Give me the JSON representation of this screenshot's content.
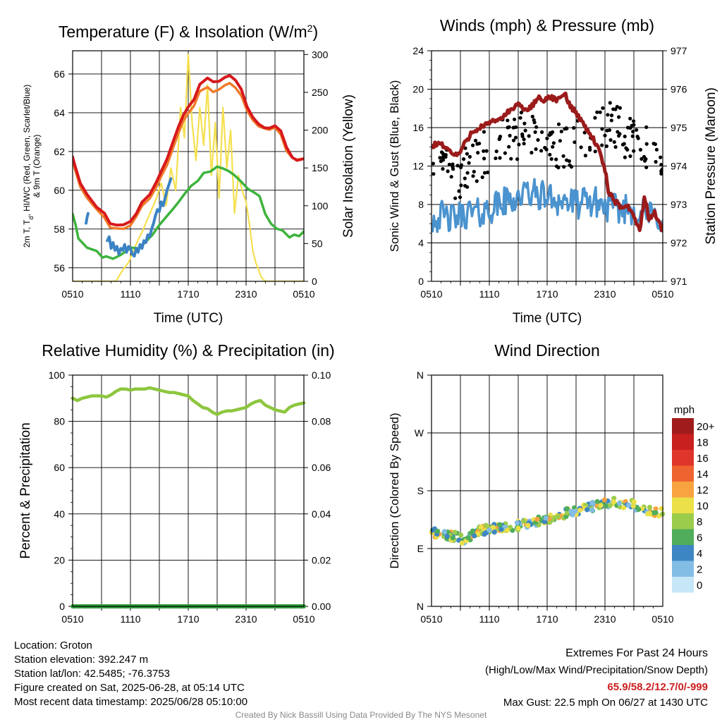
{
  "colors": {
    "red": "#d7191c",
    "orange": "#f07b2a",
    "green": "#3db33d",
    "blue": "#3b83c4",
    "yellow": "#f5e050",
    "maroon": "#9b1b1b",
    "sonic_blue": "#4a93cf",
    "rh_green": "#8dc63f",
    "precip_green": "#2f9e3a",
    "extremes_red": "#cc1f1f",
    "credit_gray": "#888888"
  },
  "chart_data": [
    {
      "id": "temperature",
      "type": "line",
      "title": "Temperature (F) & Insolation (W/m²)",
      "title_parts": [
        "Temperature (F) & Insolation (W/m",
        "2",
        ")"
      ],
      "xlabel": "Time (UTC)",
      "ylabel_lines": [
        "2m T, T",
        "d",
        ", HI/WC (Red, Green, Scarlet/Blue)",
        "& 9m T (Orange)"
      ],
      "y2label": "Solar Insolation (Yellow)",
      "x_ticks": [
        "0510",
        "1110",
        "1710",
        "2310",
        "0510"
      ],
      "x_hours": [
        0,
        24
      ],
      "ylim": [
        55.3,
        67.2
      ],
      "y_ticks": [
        56,
        58,
        60,
        62,
        64,
        66
      ],
      "y2lim": [
        0,
        305
      ],
      "y2_ticks": [
        0,
        50,
        100,
        150,
        200,
        250,
        300
      ],
      "grid": true,
      "series": [
        {
          "color": "yellow",
          "axis": "right",
          "x": [
            0,
            4.5,
            5.2,
            5.8,
            6.3,
            6.8,
            7.2,
            7.7,
            8.2,
            8.7,
            9.2,
            9.7,
            10.2,
            10.7,
            11.2,
            11.6,
            12,
            12.4,
            12.8,
            13.2,
            13.6,
            14,
            14.4,
            14.8,
            15.2,
            15.6,
            16,
            16.4,
            16.8,
            17.2,
            17.6,
            18,
            18.4,
            18.7,
            19,
            19.3,
            19.6,
            20,
            24
          ],
          "y": [
            0,
            0,
            15,
            25,
            40,
            55,
            65,
            80,
            95,
            110,
            130,
            100,
            150,
            120,
            230,
            190,
            300,
            210,
            160,
            230,
            180,
            260,
            140,
            210,
            110,
            230,
            150,
            200,
            90,
            140,
            120,
            105,
            70,
            40,
            25,
            15,
            5,
            0,
            0
          ]
        },
        {
          "color": "green",
          "axis": "left",
          "x": [
            0,
            0.3,
            0.6,
            1.5,
            2.5,
            3.1,
            3.5,
            4.2,
            5,
            5.5,
            6.1,
            6.8,
            7.5,
            8.3,
            9,
            9.7,
            10.4,
            11,
            11.6,
            12.3,
            13,
            13.6,
            14.3,
            15,
            15.6,
            16.2,
            16.8,
            17.5,
            18.2,
            18.8,
            19.4,
            20,
            20.6,
            21.2,
            21.8,
            22.5,
            23,
            23.5,
            24
          ],
          "y": [
            58.8,
            58.2,
            57.5,
            57.0,
            56.9,
            56.5,
            56.6,
            56.5,
            56.7,
            56.8,
            57.0,
            57.0,
            57.3,
            57.7,
            58.2,
            58.6,
            59.0,
            59.4,
            59.8,
            60.2,
            60.5,
            60.9,
            61.0,
            61.2,
            61.1,
            61.0,
            60.8,
            60.4,
            60.1,
            59.9,
            59.7,
            58.8,
            58.3,
            58.0,
            57.9,
            57.6,
            57.7,
            57.6,
            57.9
          ]
        },
        {
          "color": "orange",
          "axis": "left",
          "x": [
            0,
            0.3,
            0.8,
            1.5,
            2.5,
            3.3,
            3.9,
            4.6,
            5.3,
            6,
            6.6,
            7.2,
            8,
            8.7,
            9.2,
            9.8,
            10.5,
            11,
            11.5,
            12,
            12.6,
            13.2,
            14,
            14.6,
            15.2,
            15.8,
            16.3,
            16.9,
            17.5,
            18.1,
            18.7,
            19.3,
            19.9,
            20.4,
            21,
            21.6,
            22.2,
            22.8,
            23.3,
            24
          ],
          "y": [
            61.5,
            61.0,
            60.2,
            59.6,
            59.0,
            58.6,
            58.1,
            58.0,
            58.0,
            58.2,
            58.6,
            59.2,
            59.6,
            60.2,
            60.7,
            61.3,
            62.3,
            63.0,
            63.6,
            64.0,
            64.4,
            65.1,
            65.3,
            65.1,
            65.2,
            65.4,
            65.5,
            65.3,
            64.9,
            64.1,
            63.6,
            63.3,
            63.2,
            63.1,
            63.2,
            62.9,
            62.0,
            61.7,
            61.6,
            61.6
          ]
        },
        {
          "color": "red",
          "axis": "left",
          "x": [
            0,
            0.3,
            0.8,
            1.5,
            2.5,
            3.3,
            3.9,
            4.6,
            5.3,
            6,
            6.6,
            7.2,
            8,
            8.7,
            9.2,
            9.8,
            10.5,
            11,
            11.5,
            12,
            12.6,
            13.2,
            14,
            14.6,
            15.2,
            15.8,
            16.3,
            16.9,
            17.5,
            18.1,
            18.7,
            19.3,
            19.9,
            20.4,
            21,
            21.6,
            22.2,
            22.8,
            23.3,
            24
          ],
          "y": [
            61.7,
            61.2,
            60.4,
            59.8,
            59.1,
            58.8,
            58.3,
            58.2,
            58.2,
            58.4,
            58.8,
            59.4,
            59.8,
            60.4,
            61.0,
            61.6,
            62.6,
            63.3,
            63.9,
            64.3,
            64.7,
            65.5,
            65.8,
            65.6,
            65.6,
            65.8,
            65.9,
            65.7,
            65.2,
            64.3,
            63.8,
            63.4,
            63.2,
            63.2,
            63.3,
            63.1,
            62.2,
            61.7,
            61.5,
            61.6
          ]
        },
        {
          "color": "blue",
          "axis": "left",
          "x": [
            1.4,
            1.5,
            1.6
          ],
          "y": [
            58.3,
            58.6,
            58.8
          ]
        },
        {
          "color": "blue",
          "axis": "left",
          "x": [
            3.6,
            3.8,
            4,
            4.2,
            4.4,
            4.6,
            4.8,
            5,
            5.2,
            5.4,
            5.6,
            5.8,
            6,
            6.2,
            6.4,
            6.6,
            6.8,
            7,
            7.2,
            7.4,
            7.6,
            7.8,
            8,
            8.2,
            8.4,
            8.6,
            8.8,
            9,
            9.2,
            9.4,
            9.6,
            9.8,
            10,
            10.2
          ],
          "y": [
            57.4,
            57.6,
            57.0,
            57.3,
            56.9,
            57.1,
            56.7,
            57.0,
            56.9,
            57.2,
            56.8,
            57.1,
            57.0,
            56.7,
            56.6,
            57.0,
            56.8,
            57.2,
            57.0,
            57.4,
            57.3,
            57.7,
            57.6,
            58.0,
            58.3,
            58.7,
            59.0,
            58.9,
            59.4,
            59.2,
            59.6,
            60.0,
            60.3,
            60.6
          ]
        }
      ]
    },
    {
      "id": "winds",
      "type": "line",
      "title": "Winds (mph) & Pressure (mb)",
      "xlabel": "Time (UTC)",
      "ylabel": "Sonic Wind & Gust (Blue, Black)",
      "y2label": "Station Pressure (Maroon)",
      "x_ticks": [
        "0510",
        "1110",
        "1710",
        "2310",
        "0510"
      ],
      "x_hours": [
        0,
        24
      ],
      "ylim": [
        0,
        24
      ],
      "y_ticks": [
        0,
        4,
        8,
        12,
        16,
        20,
        24
      ],
      "y2lim": [
        971,
        977
      ],
      "y2_ticks": [
        971,
        972,
        973,
        974,
        975,
        976,
        977
      ],
      "grid": true,
      "series": [
        {
          "color": "sonic_blue",
          "axis": "left",
          "kind": "noisy-line",
          "x": [
            0,
            1,
            2,
            3,
            4,
            5,
            6,
            7,
            8,
            9,
            10,
            11,
            12,
            13,
            14,
            15,
            16,
            17,
            18,
            19,
            20,
            21,
            22,
            23,
            24
          ],
          "y": [
            6.5,
            6.8,
            6.5,
            6.8,
            7.2,
            7.0,
            7.5,
            8.0,
            8.4,
            8.8,
            9.2,
            9.0,
            8.8,
            8.5,
            8.3,
            8.0,
            8.2,
            8.3,
            7.8,
            7.5,
            7.6,
            7.4,
            7.0,
            6.8,
            6.5
          ],
          "amp": 1.6
        },
        {
          "color": "black",
          "axis": "left",
          "kind": "points",
          "x": [
            0,
            1,
            2,
            3,
            4,
            5,
            6,
            7,
            8,
            9,
            10,
            11,
            12,
            13,
            14,
            15,
            16,
            17,
            18,
            19,
            20,
            21,
            22,
            23,
            24
          ],
          "y": [
            11.5,
            11.5,
            11.0,
            10.8,
            12.0,
            13.0,
            13.8,
            14.2,
            14.6,
            15.0,
            15.2,
            15.0,
            14.5,
            14.0,
            13.8,
            14.0,
            14.8,
            15.5,
            16.0,
            16.0,
            15.2,
            14.8,
            14.0,
            13.0,
            12.5
          ],
          "amp": 2.6,
          "count": 190
        },
        {
          "color": "maroon",
          "axis": "right",
          "kind": "noisy-line",
          "x": [
            0,
            0.7,
            1.5,
            2.2,
            2.8,
            3.5,
            4.2,
            5,
            6,
            6.8,
            7.5,
            8.4,
            9.2,
            9.9,
            10.5,
            11.2,
            11.8,
            12.4,
            13.1,
            13.8,
            14.3,
            15,
            15.5,
            16,
            16.6,
            17.4,
            18,
            18.4,
            19,
            19.6,
            20.3,
            21,
            21.6,
            22.1,
            22.6,
            23.1,
            23.6,
            24
          ],
          "y": [
            974.5,
            974.6,
            974.5,
            974.3,
            974.3,
            974.6,
            974.9,
            975.0,
            975.1,
            975.2,
            975.3,
            975.5,
            975.6,
            975.4,
            975.6,
            975.8,
            975.7,
            975.8,
            975.7,
            975.9,
            975.6,
            975.4,
            975.2,
            975.0,
            974.8,
            974.4,
            973.9,
            973.3,
            973.1,
            972.9,
            973.0,
            972.7,
            972.3,
            973.2,
            972.6,
            972.8,
            972.6,
            972.3
          ],
          "amp": 0.07
        }
      ]
    },
    {
      "id": "humidity",
      "type": "line",
      "title": "Relative Humidity (%) & Precipitation (in)",
      "xlabel": "",
      "ylabel": "Percent & Precipitation",
      "x_ticks": [
        "0510",
        "1110",
        "1710",
        "2310",
        "0510"
      ],
      "x_hours": [
        0,
        24
      ],
      "ylim": [
        0,
        100
      ],
      "y_ticks": [
        0,
        20,
        40,
        60,
        80,
        100
      ],
      "y2lim": [
        0,
        0.1
      ],
      "y2_ticks": [
        "0.00",
        "0.02",
        "0.04",
        "0.06",
        "0.08",
        "0.10"
      ],
      "grid": true,
      "series": [
        {
          "color": "rh_green",
          "axis": "left",
          "x": [
            0,
            0.5,
            1,
            1.5,
            2,
            2.5,
            3,
            3.5,
            4,
            4.5,
            5,
            5.5,
            6,
            6.5,
            7,
            7.5,
            8,
            8.5,
            9,
            9.5,
            10,
            10.5,
            11,
            11.5,
            12,
            12.5,
            13,
            13.5,
            14,
            14.5,
            15,
            15.5,
            16,
            16.5,
            17,
            17.5,
            18,
            18.5,
            19,
            19.5,
            20,
            20.5,
            21,
            21.5,
            22,
            22.5,
            23,
            23.5,
            24
          ],
          "y": [
            90,
            89,
            90,
            90.5,
            91,
            91,
            91,
            90.5,
            91.5,
            93,
            94,
            94,
            93.5,
            94,
            94,
            94,
            94.5,
            94,
            93.5,
            93,
            92.5,
            92.5,
            92,
            91.5,
            91,
            89,
            87.5,
            86,
            85.5,
            84,
            83,
            84,
            84.5,
            84.5,
            85,
            85.5,
            86,
            87.5,
            88.5,
            89,
            87,
            86,
            85,
            84.5,
            84,
            86,
            87,
            87.5,
            88
          ]
        },
        {
          "color": "precip_green",
          "axis": "right",
          "x": [
            0,
            24
          ],
          "y": [
            0,
            0
          ]
        }
      ]
    },
    {
      "id": "direction",
      "type": "scatter",
      "title": "Wind Direction",
      "ylabel": "Direction (Colored By Speed)",
      "x_ticks": [
        "0510",
        "1110",
        "1710",
        "2310",
        "0510"
      ],
      "x_hours": [
        0,
        24
      ],
      "ylim": [
        0,
        360
      ],
      "y_ticks": [
        "N",
        "E",
        "S",
        "W",
        "N"
      ],
      "grid": true,
      "x": [
        0,
        2,
        3.5,
        5,
        7,
        9,
        11,
        13,
        15,
        17,
        19,
        21,
        22.5,
        24
      ],
      "y": [
        116,
        110,
        104,
        118,
        122,
        126,
        132,
        140,
        150,
        156,
        162,
        158,
        150,
        146
      ],
      "spread": 7,
      "count": 260,
      "speed_range": [
        2,
        13
      ],
      "legend": {
        "unit": "mph",
        "labels": [
          "20+",
          "18",
          "16",
          "14",
          "12",
          "10",
          "8",
          "6",
          "4",
          "2",
          "0"
        ],
        "colors": [
          "#a01c1c",
          "#c8201e",
          "#e0352a",
          "#ef6330",
          "#f9a340",
          "#ece048",
          "#9ccc4c",
          "#4fad5b",
          "#3d86c4",
          "#83bde6",
          "#c6e7f8"
        ]
      }
    }
  ],
  "info": {
    "location": "Location: Groton",
    "elevation": "Station elevation: 392.247 m",
    "latlon": "Station lat/lon: 42.5485; -76.3753",
    "created": "Figure created on Sat, 2025-06-28, at 05:14 UTC",
    "recent": "Most recent data timestamp: 2025/06/28 05:10:00"
  },
  "extremes": {
    "title": "Extremes For Past 24 Hours",
    "subtitle": "(High/Low/Max Wind/Precipitation/Snow Depth)",
    "values": "65.9/58.2/12.7/0/-999",
    "gust": "Max Gust: 22.5 mph On 06/27 at 1430 UTC"
  },
  "credit": "Created By Nick Bassill Using Data Provided By The NYS Mesonet"
}
